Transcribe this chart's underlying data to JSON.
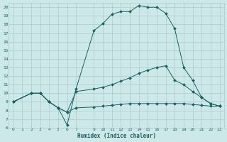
{
  "xlabel": "Humidex (Indice chaleur)",
  "bg_color": "#cce8e8",
  "grid_color": "#aacccc",
  "line_color": "#1a6060",
  "xlim": [
    -0.5,
    23.5
  ],
  "ylim": [
    6,
    20.5
  ],
  "xticks": [
    0,
    1,
    2,
    3,
    4,
    5,
    6,
    7,
    9,
    10,
    11,
    12,
    13,
    14,
    15,
    16,
    17,
    18,
    19,
    20,
    21,
    22,
    23
  ],
  "yticks": [
    6,
    7,
    8,
    9,
    10,
    11,
    12,
    13,
    14,
    15,
    16,
    17,
    18,
    19,
    20
  ],
  "curve1_x": [
    0,
    2,
    3,
    4,
    5,
    6,
    7,
    9,
    10,
    11,
    12,
    13,
    14,
    15,
    16,
    17,
    18,
    19,
    20,
    21,
    22,
    23
  ],
  "curve1_y": [
    9,
    10,
    10,
    9,
    8.3,
    7.8,
    8.3,
    8.4,
    8.5,
    8.6,
    8.7,
    8.8,
    8.8,
    8.8,
    8.8,
    8.8,
    8.8,
    8.8,
    8.7,
    8.6,
    8.5,
    8.5
  ],
  "curve2_x": [
    0,
    2,
    3,
    4,
    5,
    6,
    7,
    9,
    10,
    11,
    12,
    13,
    14,
    15,
    16,
    17,
    18,
    19,
    20,
    21,
    22,
    23
  ],
  "curve2_y": [
    9,
    10,
    10,
    9,
    8.3,
    7.8,
    10.2,
    10.5,
    10.7,
    11.0,
    11.4,
    11.8,
    12.3,
    12.7,
    13.0,
    13.2,
    11.5,
    11.0,
    10.2,
    9.5,
    8.8,
    8.5
  ],
  "curve3_x": [
    0,
    2,
    3,
    4,
    5,
    6,
    7,
    9,
    10,
    11,
    12,
    13,
    14,
    15,
    16,
    17,
    18,
    19,
    20,
    21,
    22,
    23
  ],
  "curve3_y": [
    9,
    10,
    10,
    9,
    8.3,
    6.3,
    10.5,
    17.3,
    18.1,
    19.2,
    19.5,
    19.5,
    20.2,
    20.0,
    20.0,
    19.3,
    17.5,
    13.0,
    11.5,
    9.5,
    8.8,
    8.5
  ]
}
